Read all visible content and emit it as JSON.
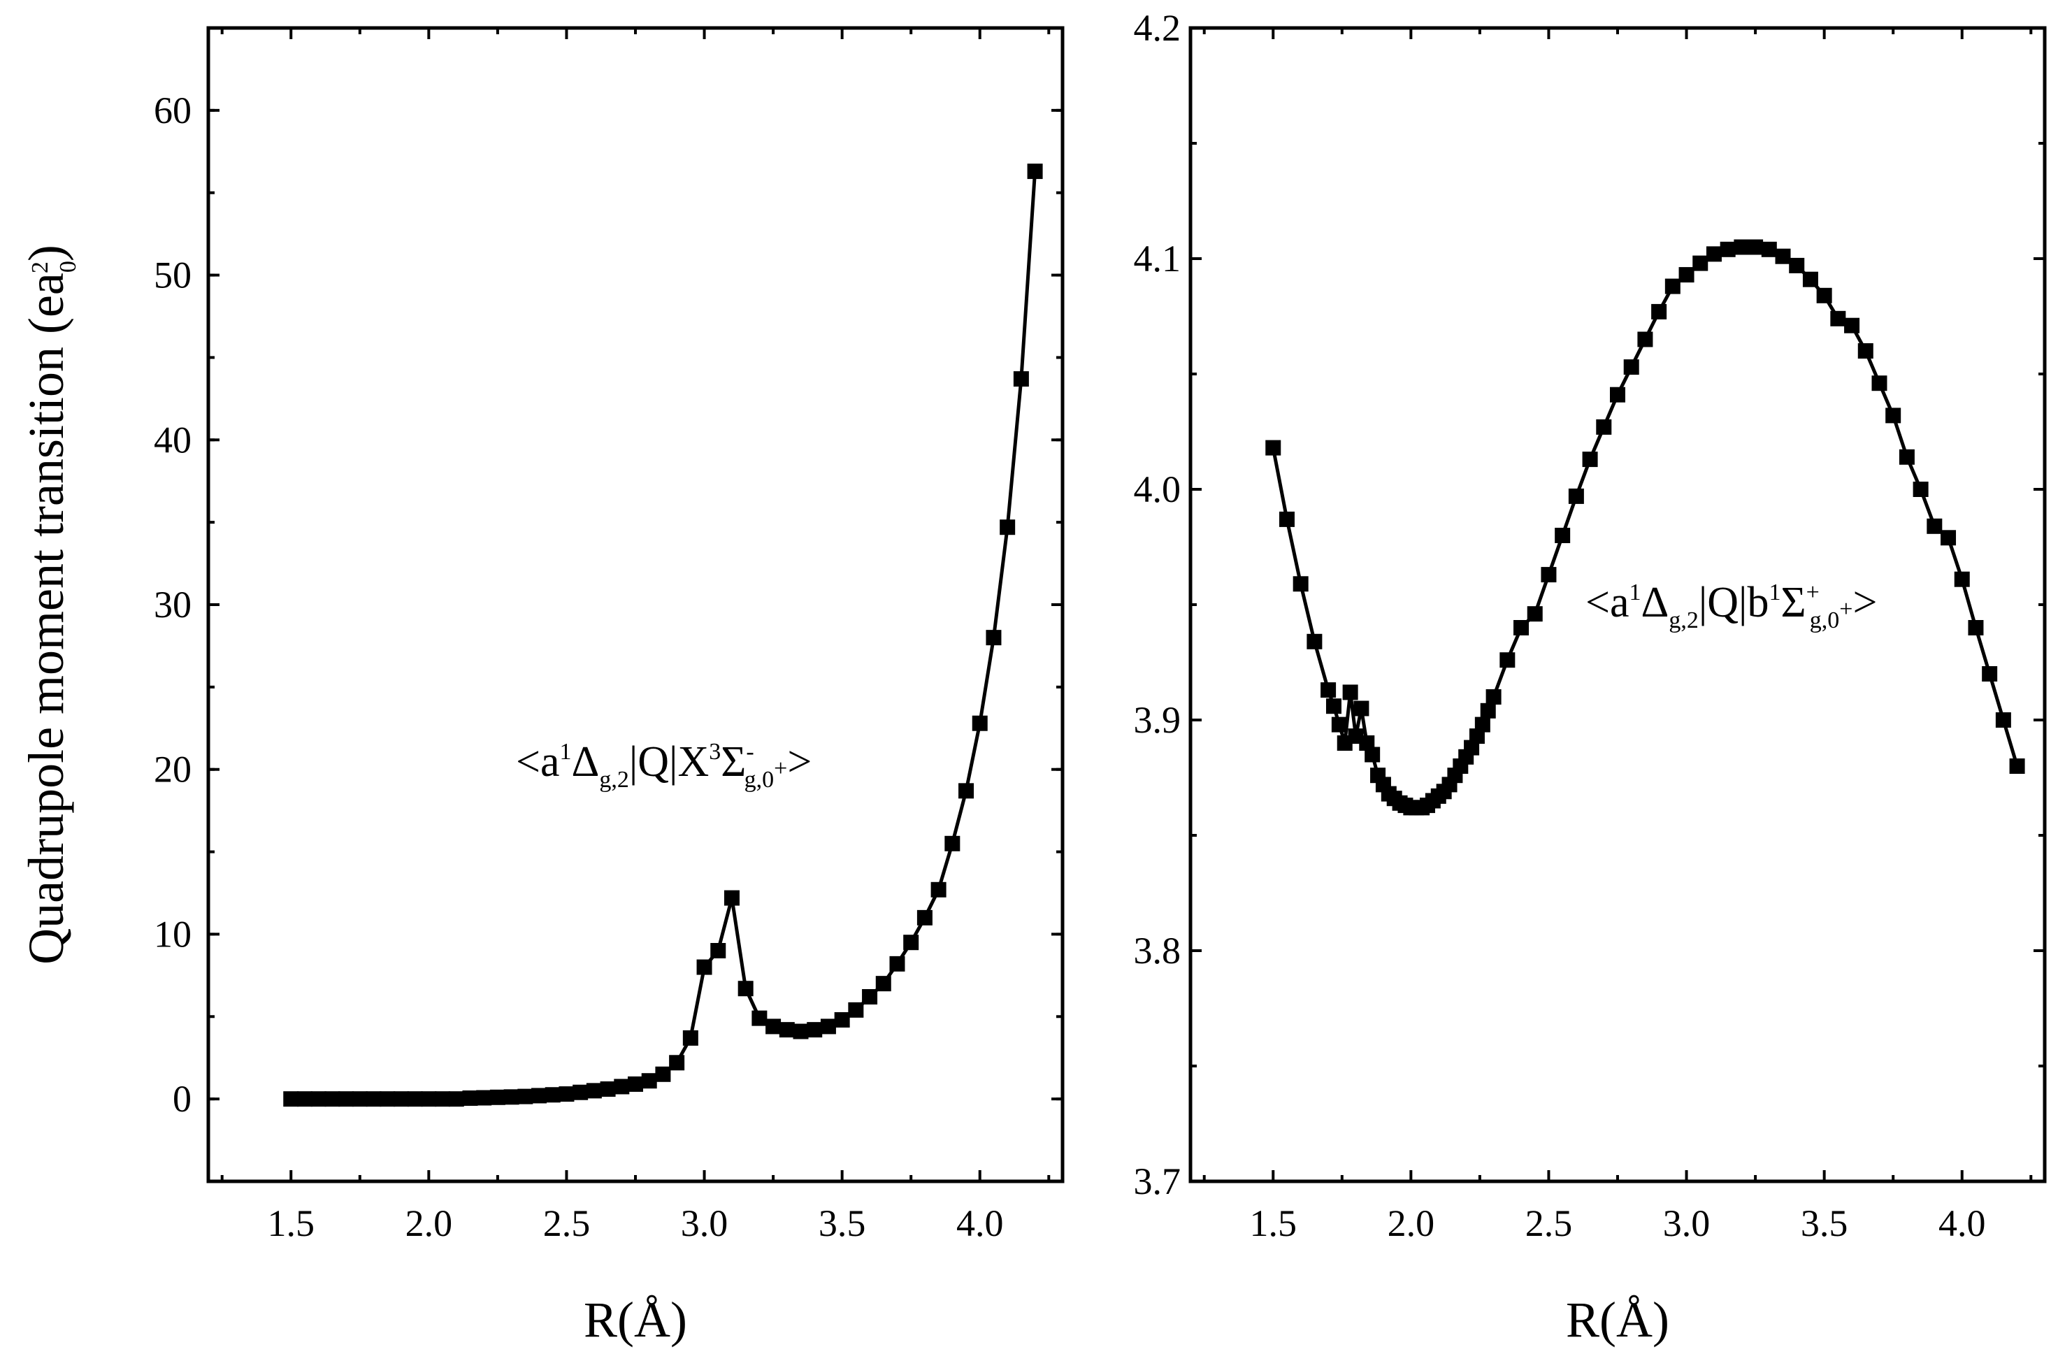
{
  "chart_data": [
    {
      "type": "scatter",
      "panel": "left",
      "xlim": [
        1.2,
        4.3
      ],
      "ylim": [
        -5,
        65
      ],
      "xticks": [
        "1.5",
        "2.0",
        "2.5",
        "3.0",
        "3.5",
        "4.0"
      ],
      "yticks": [
        "0",
        "10",
        "20",
        "30",
        "40",
        "50",
        "60"
      ],
      "xlabel": "R(Å)",
      "ylabel": {
        "main": "Quadrupole moment transition (ea",
        "sub": "0",
        "sup": "2",
        "close": ")"
      },
      "annotation": {
        "parts": [
          "<a",
          "1",
          "Δ",
          "g,2",
          "|Q|X",
          "3",
          "Σ",
          "-",
          "g,0",
          "+",
          ">"
        ]
      },
      "series": [
        {
          "x": [
            1.5,
            1.55,
            1.6,
            1.65,
            1.7,
            1.75,
            1.8,
            1.85,
            1.9,
            1.95,
            2.0,
            2.05,
            2.1,
            2.15,
            2.2,
            2.25,
            2.3,
            2.35,
            2.4,
            2.45,
            2.5,
            2.55,
            2.6,
            2.65,
            2.7,
            2.75,
            2.8,
            2.85,
            2.9,
            2.95,
            3.0,
            3.05,
            3.1,
            3.15,
            3.2,
            3.25,
            3.3,
            3.35,
            3.4,
            3.45,
            3.5,
            3.55,
            3.6,
            3.65,
            3.7,
            3.75,
            3.8,
            3.85,
            3.9,
            3.95,
            4.0,
            4.05,
            4.1,
            4.15,
            4.2
          ],
          "y": [
            0.0,
            0.0,
            0.0,
            0.0,
            0.0,
            0.0,
            0.0,
            0.0,
            0.0,
            0.0,
            0.0,
            0.0,
            0.0,
            0.05,
            0.07,
            0.1,
            0.12,
            0.15,
            0.2,
            0.25,
            0.3,
            0.4,
            0.5,
            0.6,
            0.75,
            0.9,
            1.1,
            1.5,
            2.2,
            3.7,
            8.0,
            9.0,
            12.2,
            6.7,
            4.9,
            4.4,
            4.2,
            4.1,
            4.2,
            4.4,
            4.8,
            5.4,
            6.2,
            7.0,
            8.2,
            9.5,
            11.0,
            12.7,
            15.5,
            18.7,
            22.8,
            28.0,
            34.7,
            43.7,
            56.3
          ]
        }
      ]
    },
    {
      "type": "scatter",
      "panel": "right",
      "xlim": [
        1.2,
        4.3
      ],
      "ylim": [
        3.7,
        4.2
      ],
      "xticks": [
        "1.5",
        "2.0",
        "2.5",
        "3.0",
        "3.5",
        "4.0"
      ],
      "yticks": [
        "3.7",
        "3.8",
        "3.9",
        "4.0",
        "4.1",
        "4.2"
      ],
      "xlabel": "R(Å)",
      "annotation": {
        "parts": [
          "<a",
          "1",
          "Δ",
          "g,2",
          "|Q|b",
          "1",
          "Σ",
          "+",
          "g,0",
          "+",
          ">"
        ]
      },
      "series": [
        {
          "x": [
            1.5,
            1.55,
            1.6,
            1.65,
            1.7,
            1.72,
            1.74,
            1.76,
            1.78,
            1.8,
            1.82,
            1.84,
            1.86,
            1.88,
            1.9,
            1.92,
            1.94,
            1.96,
            1.98,
            2.0,
            2.02,
            2.04,
            2.06,
            2.08,
            2.1,
            2.12,
            2.14,
            2.16,
            2.18,
            2.2,
            2.22,
            2.24,
            2.26,
            2.28,
            2.3,
            2.35,
            2.4,
            2.45,
            2.5,
            2.55,
            2.6,
            2.65,
            2.7,
            2.75,
            2.8,
            2.85,
            2.9,
            2.95,
            3.0,
            3.05,
            3.1,
            3.15,
            3.2,
            3.25,
            3.3,
            3.35,
            3.4,
            3.45,
            3.5,
            3.55,
            3.6,
            3.65,
            3.7,
            3.75,
            3.8,
            3.85,
            3.9,
            3.95,
            4.0,
            4.05,
            4.1,
            4.15,
            4.2
          ],
          "y": [
            4.018,
            3.987,
            3.959,
            3.934,
            3.913,
            3.906,
            3.898,
            3.89,
            3.912,
            3.893,
            3.905,
            3.89,
            3.885,
            3.876,
            3.872,
            3.868,
            3.866,
            3.864,
            3.863,
            3.862,
            3.862,
            3.862,
            3.863,
            3.865,
            3.867,
            3.869,
            3.872,
            3.876,
            3.88,
            3.884,
            3.888,
            3.893,
            3.898,
            3.904,
            3.91,
            3.926,
            3.94,
            3.946,
            3.963,
            3.98,
            3.997,
            4.013,
            4.027,
            4.041,
            4.053,
            4.065,
            4.077,
            4.088,
            4.093,
            4.098,
            4.102,
            4.104,
            4.105,
            4.105,
            4.104,
            4.101,
            4.097,
            4.091,
            4.084,
            4.074,
            4.071,
            4.06,
            4.046,
            4.032,
            4.014,
            4.0,
            3.984,
            3.979,
            3.961,
            3.94,
            3.92,
            3.9,
            3.88
          ]
        }
      ]
    }
  ]
}
